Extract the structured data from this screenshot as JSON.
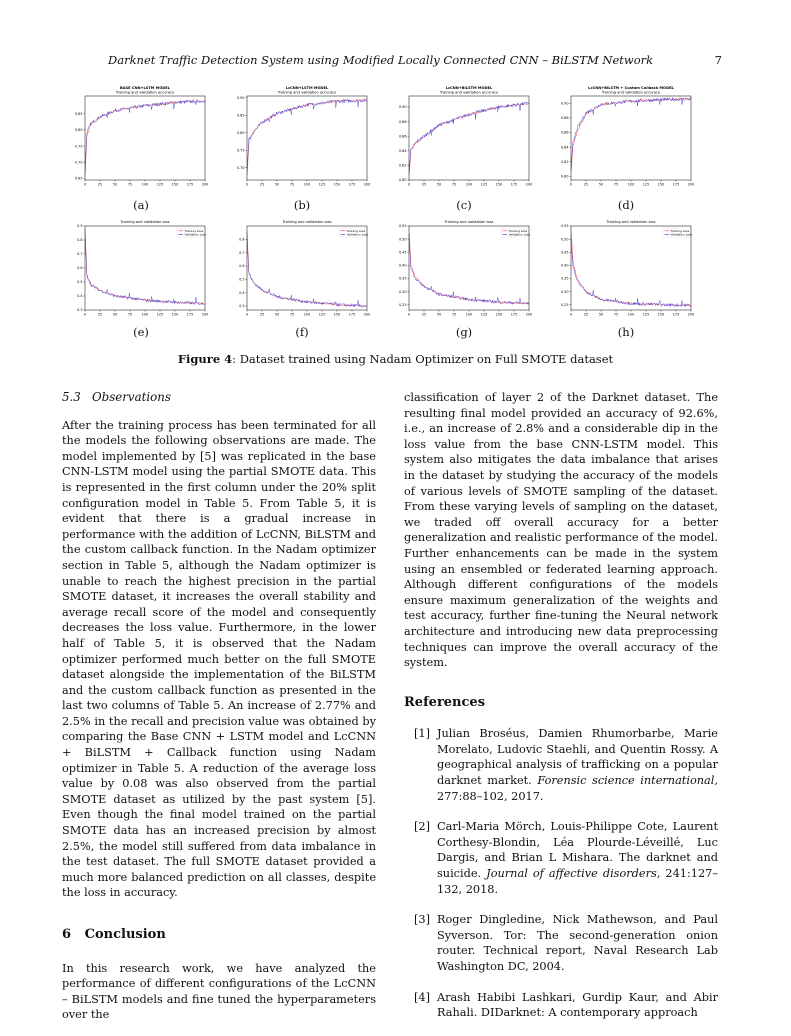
{
  "header": {
    "running_title": "Darknet Traffic Detection System using Modified Locally Connected CNN – BiLSTM Network",
    "page_number": "7"
  },
  "figure": {
    "caption_label": "Figure 4",
    "caption_text": ": Dataset trained using Nadam Optimizer on Full SMOTE dataset",
    "subplots": [
      {
        "label": "(a)",
        "title1": "BASE CNN+LSTM MODEL",
        "title2": "Training and validation accuracy"
      },
      {
        "label": "(b)",
        "title1": "LcCNN+LSTM MODEL",
        "title2": "Training and validation accuracy"
      },
      {
        "label": "(c)",
        "title1": "LcCNN+BiLSTM MODEL",
        "title2": "Training and validation accuracy"
      },
      {
        "label": "(d)",
        "title1": "LcCNN+BiLSTM + Custom Callback MODEL",
        "title2": "Training and validation accuracy"
      },
      {
        "label": "(e)",
        "title1": "",
        "title2": "Training and validation loss"
      },
      {
        "label": "(f)",
        "title1": "",
        "title2": "Training and validation loss"
      },
      {
        "label": "(g)",
        "title1": "",
        "title2": "Training and validation loss"
      },
      {
        "label": "(h)",
        "title1": "",
        "title2": "Training and validation loss"
      }
    ],
    "legend": {
      "training": "Training Loss",
      "validation": "Validation Loss"
    },
    "colors": {
      "training": "#ff3b3b",
      "validation": "#2a2ad6"
    }
  },
  "chart_data": [
    {
      "type": "line",
      "title": "BASE CNN+LSTM MODEL — Training and validation accuracy",
      "xlim": [
        0,
        200
      ],
      "ylim": [
        0.645,
        0.905
      ],
      "xticks": [
        "0",
        "25",
        "50",
        "75",
        "100",
        "125",
        "150",
        "175",
        "200"
      ],
      "yticks": [
        "0.65",
        "0.70",
        "0.75",
        "0.80",
        "0.85"
      ],
      "x": [
        0,
        3,
        10,
        25,
        50,
        100,
        150,
        200
      ],
      "series": [
        {
          "name": "Training",
          "values": [
            0.65,
            0.78,
            0.82,
            0.84,
            0.86,
            0.875,
            0.885,
            0.89
          ]
        },
        {
          "name": "Validation",
          "values": [
            0.66,
            0.79,
            0.82,
            0.84,
            0.86,
            0.875,
            0.885,
            0.89
          ]
        }
      ]
    },
    {
      "type": "line",
      "title": "LcCNN+LSTM MODEL — Training and validation accuracy",
      "xlim": [
        0,
        200
      ],
      "ylim": [
        0.665,
        0.905
      ],
      "xticks": [
        "0",
        "25",
        "50",
        "75",
        "100",
        "125",
        "150",
        "175",
        "200"
      ],
      "yticks": [
        "0.70",
        "0.75",
        "0.80",
        "0.85",
        "0.90"
      ],
      "x": [
        0,
        3,
        10,
        25,
        50,
        100,
        150,
        200
      ],
      "series": [
        {
          "name": "Training",
          "values": [
            0.67,
            0.77,
            0.8,
            0.83,
            0.855,
            0.88,
            0.89,
            0.893
          ]
        },
        {
          "name": "Validation",
          "values": [
            0.68,
            0.78,
            0.8,
            0.83,
            0.855,
            0.88,
            0.89,
            0.893
          ]
        }
      ]
    },
    {
      "type": "line",
      "title": "LcCNN+BiLSTM MODEL — Training and validation accuracy",
      "xlim": [
        0,
        200
      ],
      "ylim": [
        0.8,
        0.915
      ],
      "xticks": [
        "0",
        "25",
        "50",
        "75",
        "100",
        "125",
        "150",
        "175",
        "200"
      ],
      "yticks": [
        "0.80",
        "0.82",
        "0.84",
        "0.86",
        "0.88",
        "0.90"
      ],
      "x": [
        0,
        3,
        10,
        25,
        50,
        100,
        150,
        200
      ],
      "series": [
        {
          "name": "Training",
          "values": [
            0.8,
            0.84,
            0.85,
            0.86,
            0.875,
            0.89,
            0.9,
            0.905
          ]
        },
        {
          "name": "Validation",
          "values": [
            0.81,
            0.84,
            0.85,
            0.86,
            0.875,
            0.89,
            0.9,
            0.905
          ]
        }
      ]
    },
    {
      "type": "line",
      "title": "LcCNN+BiLSTM + Custom Callback MODEL — Training and validation accuracy",
      "xlim": [
        0,
        200
      ],
      "ylim": [
        0.795,
        0.91
      ],
      "xticks": [
        "0",
        "25",
        "50",
        "75",
        "100",
        "125",
        "150",
        "175",
        "200"
      ],
      "yticks": [
        "0.80",
        "0.82",
        "0.84",
        "0.86",
        "0.88",
        "0.90"
      ],
      "x": [
        0,
        3,
        10,
        25,
        50,
        100,
        150,
        200
      ],
      "series": [
        {
          "name": "Training",
          "values": [
            0.8,
            0.84,
            0.86,
            0.885,
            0.898,
            0.903,
            0.905,
            0.906
          ]
        },
        {
          "name": "Validation",
          "values": [
            0.81,
            0.845,
            0.865,
            0.887,
            0.899,
            0.903,
            0.905,
            0.906
          ]
        }
      ]
    },
    {
      "type": "line",
      "title": "Training and validation loss",
      "xlim": [
        0,
        200
      ],
      "ylim": [
        0.3,
        0.9
      ],
      "xticks": [
        "0",
        "25",
        "50",
        "75",
        "100",
        "125",
        "150",
        "175",
        "200"
      ],
      "yticks": [
        "0.3",
        "0.4",
        "0.5",
        "0.6",
        "0.7",
        "0.8",
        "0.9"
      ],
      "x": [
        0,
        3,
        10,
        25,
        50,
        100,
        150,
        200
      ],
      "series": [
        {
          "name": "Training Loss",
          "values": [
            0.9,
            0.55,
            0.48,
            0.44,
            0.4,
            0.37,
            0.355,
            0.345
          ]
        },
        {
          "name": "Validation Loss",
          "values": [
            0.87,
            0.55,
            0.48,
            0.44,
            0.4,
            0.37,
            0.355,
            0.345
          ]
        }
      ]
    },
    {
      "type": "line",
      "title": "Training and validation loss",
      "xlim": [
        0,
        200
      ],
      "ylim": [
        0.27,
        0.9
      ],
      "xticks": [
        "0",
        "25",
        "50",
        "75",
        "100",
        "125",
        "150",
        "175",
        "200"
      ],
      "yticks": [
        "0.3",
        "0.4",
        "0.5",
        "0.6",
        "0.7",
        "0.8"
      ],
      "x": [
        0,
        3,
        10,
        25,
        50,
        100,
        150,
        200
      ],
      "series": [
        {
          "name": "Training Loss",
          "values": [
            0.88,
            0.55,
            0.48,
            0.42,
            0.37,
            0.33,
            0.31,
            0.3
          ]
        },
        {
          "name": "Validation Loss",
          "values": [
            0.85,
            0.55,
            0.48,
            0.42,
            0.37,
            0.33,
            0.31,
            0.3
          ]
        }
      ]
    },
    {
      "type": "line",
      "title": "Training and validation loss",
      "xlim": [
        0,
        200
      ],
      "ylim": [
        0.23,
        0.55
      ],
      "xticks": [
        "0",
        "25",
        "50",
        "75",
        "100",
        "125",
        "150",
        "175",
        "200"
      ],
      "yticks": [
        "0.25",
        "0.30",
        "0.35",
        "0.40",
        "0.45",
        "0.50",
        "0.55"
      ],
      "x": [
        0,
        3,
        10,
        25,
        50,
        100,
        150,
        200
      ],
      "series": [
        {
          "name": "Training Loss",
          "values": [
            0.55,
            0.4,
            0.36,
            0.32,
            0.29,
            0.27,
            0.26,
            0.255
          ]
        },
        {
          "name": "Validation Loss",
          "values": [
            0.52,
            0.39,
            0.35,
            0.32,
            0.29,
            0.27,
            0.26,
            0.255
          ]
        }
      ]
    },
    {
      "type": "line",
      "title": "Training and validation loss",
      "xlim": [
        0,
        200
      ],
      "ylim": [
        0.23,
        0.55
      ],
      "xticks": [
        "0",
        "25",
        "50",
        "75",
        "100",
        "125",
        "150",
        "175",
        "200"
      ],
      "yticks": [
        "0.25",
        "0.30",
        "0.35",
        "0.40",
        "0.45",
        "0.50",
        "0.55"
      ],
      "x": [
        0,
        3,
        10,
        25,
        50,
        100,
        150,
        200
      ],
      "series": [
        {
          "name": "Training Loss",
          "values": [
            0.55,
            0.42,
            0.35,
            0.3,
            0.27,
            0.255,
            0.25,
            0.248
          ]
        },
        {
          "name": "Validation Loss",
          "values": [
            0.5,
            0.4,
            0.34,
            0.3,
            0.27,
            0.255,
            0.25,
            0.248
          ]
        }
      ]
    }
  ],
  "section_5_3": {
    "number": "5.3",
    "title": "Observations",
    "body": "After the training process has been terminated for all the models the following observations are made. The model implemented by [5] was replicated in the base CNN-LSTM model using the partial SMOTE data. This is represented in the first column under the 20% split configuration model in Table 5. From Table 5, it is evident that there is a gradual increase in performance with the addition of LcCNN, BiLSTM and the custom callback function. In the Nadam optimizer section in Table 5, although the Nadam optimizer is unable to reach the highest precision in the partial SMOTE dataset, it increases the overall stability and average recall score of the model and consequently decreases the loss value. Furthermore, in the lower half of Table 5, it is observed that the Nadam optimizer performed much better on the full SMOTE dataset alongside the implementation of the BiLSTM and the custom callback function as presented in the last two columns of Table 5. An increase of 2.77% and 2.5% in the recall and precision value was obtained by comparing the Base CNN + LSTM model and LcCNN + BiLSTM + Callback function using Nadam optimizer in Table 5. A reduction of the average loss value by 0.08 was also observed from the partial SMOTE dataset as utilized by the past system [5]. Even though the final model trained on the partial SMOTE data has an increased precision by almost 2.5%, the model still suffered from data imbalance in the test dataset. The full SMOTE dataset provided a much more balanced prediction on all classes, despite the loss in accuracy."
  },
  "section_6": {
    "number": "6",
    "title": "Conclusion",
    "body_left": "In this research work, we have analyzed the performance of different configurations of the LcCNN – BiLSTM models and fine tuned the hyperparameters over the",
    "body_right": "classification of layer 2 of the Darknet dataset. The resulting final model provided an accuracy of 92.6%, i.e., an increase of 2.8% and a considerable dip in the loss value from the base CNN-LSTM model. This system also mitigates the data imbalance that arises in the dataset by studying the accuracy of the models of various levels of SMOTE sampling of the dataset. From these varying levels of sampling on the dataset, we traded off overall accuracy for a better generalization and realistic performance of the model. Further enhancements can be made in the system using an ensembled or federated learning approach. Although different configurations of the models ensure maximum generalization of the weights and test accuracy, further fine-tuning the Neural network architecture and introducing new data preprocessing techniques can improve the overall accuracy of the system."
  },
  "references": {
    "title": "References",
    "items": [
      {
        "num": "[1]",
        "text": "Julian Broséus, Damien Rhumorbarbe, Marie Morelato, Ludovic Staehli, and Quentin Rossy. A geographical analysis of trafficking on a popular darknet market.",
        "venue": "Forensic science international,",
        "rest": " 277:88–102, 2017."
      },
      {
        "num": "[2]",
        "text": "Carl-Maria Mörch, Louis-Philippe Cote, Laurent Corthesy-Blondin, Léa Plourde-Léveillé, Luc Dargis, and Brian L Mishara. The darknet and suicide.",
        "venue": "Journal of affective disorders,",
        "rest": " 241:127–132, 2018."
      },
      {
        "num": "[3]",
        "text": "Roger Dingledine, Nick Mathewson, and Paul Syverson. Tor: The second-generation onion router. Technical report, Naval Research Lab Washington DC, 2004.",
        "venue": "",
        "rest": ""
      },
      {
        "num": "[4]",
        "text": "Arash Habibi Lashkari, Gurdip Kaur, and Abir Rahali. DIDarknet: A contemporary approach",
        "venue": "",
        "rest": ""
      }
    ]
  }
}
